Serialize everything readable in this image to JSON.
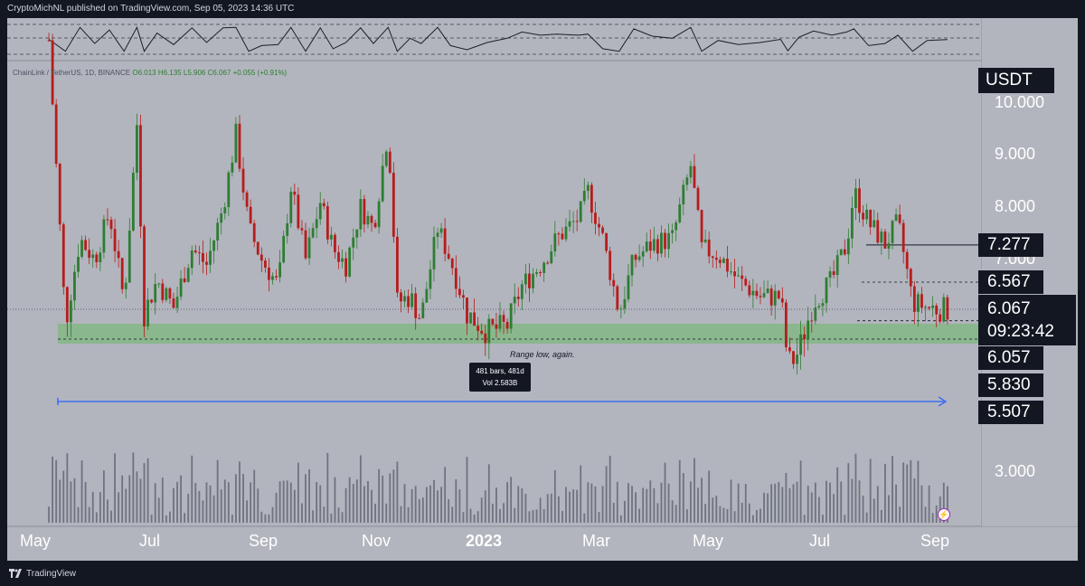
{
  "publish_info": "CryptoMichNL published on TradingView.com, Sep 05, 2023 14:36 UTC",
  "symbol_line": {
    "symbol": "ChainLink / TetherUS, 1D, BINANCE",
    "open": "O6.013",
    "high": "H6.135",
    "low": "L5.906",
    "close": "C6.067",
    "change": "+0.055 (+0.91%)"
  },
  "currency": "USDT",
  "price_axis": [
    "10.000",
    "9.000",
    "8.000",
    "7.000",
    "3.000"
  ],
  "price_tags": [
    "7.277",
    "6.567",
    "6.057",
    "5.830",
    "5.507"
  ],
  "current_price": "6.067",
  "countdown": "09:23:42",
  "time_axis": [
    "May",
    "Jul",
    "Sep",
    "Nov",
    "2023",
    "Mar",
    "May",
    "Jul",
    "Sep"
  ],
  "annotation": "Range low, again.",
  "measure": {
    "bars": "481 bars, 481d",
    "volume": "Vol 2.583B"
  },
  "footer_brand": "TradingView",
  "colors": {
    "bull": "#2e7d32",
    "bear": "#b71c1c",
    "zone": "#7cb87c",
    "arrow": "#2962ff",
    "tag_bg": "#131722"
  },
  "chart_data": {
    "type": "candlestick",
    "symbol": "LINK/USDT",
    "timeframe": "1D",
    "range_zone": [
      5.507,
      5.83
    ],
    "levels": {
      "resistance": 7.277,
      "mid": 6.567,
      "current": 6.067,
      "support_top": 6.057,
      "range_high": 5.83,
      "range_low": 5.507
    },
    "price_path": [
      [
        "2022-05-03",
        11.2
      ],
      [
        "2022-05-12",
        5.8
      ],
      [
        "2022-05-20",
        7.4
      ],
      [
        "2022-05-28",
        7.0
      ],
      [
        "2022-06-05",
        7.9
      ],
      [
        "2022-06-13",
        6.2
      ],
      [
        "2022-06-20",
        9.6
      ],
      [
        "2022-06-24",
        6.0
      ],
      [
        "2022-07-01",
        6.6
      ],
      [
        "2022-07-10",
        6.1
      ],
      [
        "2022-07-20",
        7.2
      ],
      [
        "2022-07-28",
        6.9
      ],
      [
        "2022-08-06",
        8.0
      ],
      [
        "2022-08-13",
        9.4
      ],
      [
        "2022-08-20",
        7.6
      ],
      [
        "2022-08-27",
        7.0
      ],
      [
        "2022-09-05",
        6.5
      ],
      [
        "2022-09-12",
        8.4
      ],
      [
        "2022-09-20",
        7.0
      ],
      [
        "2022-09-28",
        8.1
      ],
      [
        "2022-10-05",
        7.2
      ],
      [
        "2022-10-12",
        6.9
      ],
      [
        "2022-10-20",
        8.0
      ],
      [
        "2022-10-27",
        7.6
      ],
      [
        "2022-11-04",
        9.5
      ],
      [
        "2022-11-09",
        6.2
      ],
      [
        "2022-11-16",
        6.3
      ],
      [
        "2022-11-22",
        5.9
      ],
      [
        "2022-12-01",
        7.6
      ],
      [
        "2022-12-08",
        7.0
      ],
      [
        "2022-12-17",
        6.0
      ],
      [
        "2022-12-28",
        5.7
      ],
      [
        "2023-01-08",
        5.8
      ],
      [
        "2023-01-16",
        6.5
      ],
      [
        "2023-01-26",
        6.9
      ],
      [
        "2023-02-04",
        7.4
      ],
      [
        "2023-02-16",
        7.8
      ],
      [
        "2023-02-21",
        8.3
      ],
      [
        "2023-03-01",
        7.4
      ],
      [
        "2023-03-10",
        6.0
      ],
      [
        "2023-03-18",
        7.0
      ],
      [
        "2023-03-28",
        7.3
      ],
      [
        "2023-04-08",
        7.4
      ],
      [
        "2023-04-18",
        8.8
      ],
      [
        "2023-04-24",
        7.2
      ],
      [
        "2023-05-03",
        7.1
      ],
      [
        "2023-05-14",
        6.6
      ],
      [
        "2023-05-26",
        6.3
      ],
      [
        "2023-06-06",
        6.3
      ],
      [
        "2023-06-10",
        5.2
      ],
      [
        "2023-06-16",
        5.4
      ],
      [
        "2023-06-24",
        6.2
      ],
      [
        "2023-07-04",
        6.6
      ],
      [
        "2023-07-12",
        7.3
      ],
      [
        "2023-07-16",
        8.3
      ],
      [
        "2023-07-24",
        7.7
      ],
      [
        "2023-08-02",
        7.3
      ],
      [
        "2023-08-09",
        7.7
      ],
      [
        "2023-08-17",
        6.2
      ],
      [
        "2023-08-25",
        6.1
      ],
      [
        "2023-09-05",
        6.07
      ]
    ]
  }
}
